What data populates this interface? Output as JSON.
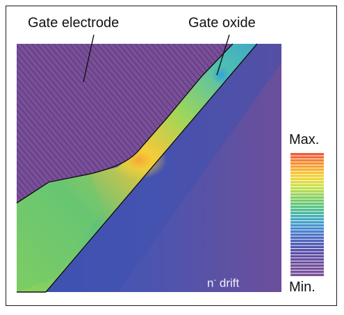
{
  "labels": {
    "gate_electrode": "Gate electrode",
    "gate_oxide": "Gate oxide",
    "colorbar_max": "Max.",
    "colorbar_min": "Min.",
    "drift_n": "n",
    "drift_sup": "-",
    "drift_word": " drift"
  },
  "colors": {
    "background_field": "#6b4f9a",
    "hatch_line": "#3c2a55",
    "field_low": "#3a4fa8",
    "field_mid": "#6ccf8f",
    "field_high": "#f7a234"
  },
  "colorbar": {
    "stops": [
      "#f25c3c",
      "#f79a2a",
      "#f5d23a",
      "#c9e24a",
      "#7fcf5f",
      "#4fbf8a",
      "#3fa9c9",
      "#4a7fd0",
      "#4e5fb8",
      "#5a4ea8",
      "#6b4f9a",
      "#7a4f9a"
    ]
  }
}
